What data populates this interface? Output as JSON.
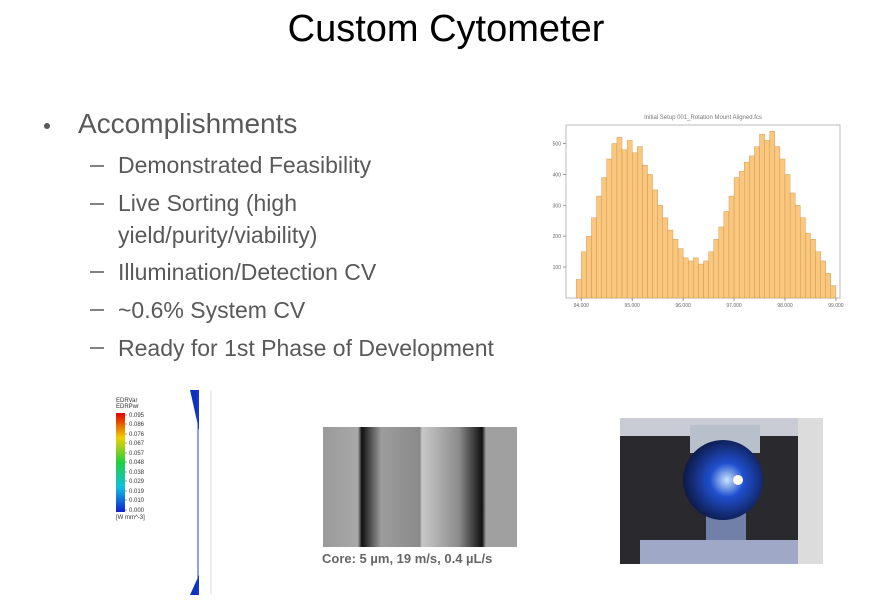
{
  "slide": {
    "title": "Custom Cytometer",
    "bullets": [
      {
        "text": "Accomplishments",
        "items": [
          "Demonstrated Feasibility",
          "Live Sorting (high yield/purity/viability)",
          "Illumination/Detection CV",
          "~0.6% System CV",
          "Ready for 1st Phase of Development"
        ]
      }
    ],
    "colorbar": {
      "labels": [
        "EDRVar",
        "EDRPwr"
      ],
      "ticks": [
        0.095,
        0.086,
        0.076,
        0.067,
        0.057,
        0.048,
        0.038,
        0.029,
        0.019,
        {
          "value": 0.01,
          "label": "0.010"
        },
        {
          "value": 0,
          "label": "0.000"
        }
      ],
      "unit": "[W mm^-3]"
    },
    "caption": "Core: 5 µm, 19 m/s, 0.4 µL/s"
  },
  "chart_data": {
    "type": "histogram",
    "title": "Initial Setup 001_Rotation Mount Aligned.fcs",
    "color": "#f9c77e",
    "bins": [
      93.9,
      94.0,
      94.1,
      94.2,
      94.3,
      94.4,
      94.5,
      94.6,
      94.7,
      94.8,
      94.9,
      95.0,
      95.1,
      95.2,
      95.3,
      95.4,
      95.5,
      95.6,
      95.7,
      95.8,
      95.9,
      96.0,
      96.1,
      96.2,
      96.3,
      96.4,
      96.5,
      96.6,
      96.7,
      96.8,
      96.9,
      97.0,
      97.1,
      97.2,
      97.3,
      97.4,
      97.5,
      97.6,
      97.7,
      97.8,
      97.9,
      98.0,
      98.1,
      98.2,
      98.3,
      98.4,
      98.5,
      98.6,
      98.7,
      98.8,
      98.9,
      99.0
    ],
    "values": [
      60,
      150,
      200,
      260,
      330,
      390,
      450,
      500,
      520,
      480,
      510,
      470,
      490,
      430,
      400,
      350,
      300,
      260,
      220,
      190,
      160,
      130,
      120,
      130,
      110,
      120,
      150,
      190,
      230,
      280,
      330,
      390,
      410,
      440,
      460,
      490,
      530,
      510,
      540,
      490,
      450,
      400,
      340,
      300,
      260,
      210,
      190,
      150,
      120,
      80,
      40
    ],
    "xlim": [
      93.7,
      99.08
    ],
    "ylim": [
      0,
      560
    ],
    "xticks": [
      {
        "value": 94,
        "label": "94.000"
      },
      {
        "value": 95,
        "label": "95.000"
      },
      {
        "value": 96,
        "label": "96.000"
      },
      {
        "value": 97,
        "label": "97.000"
      },
      {
        "value": 98,
        "label": "98.000"
      },
      {
        "value": 99,
        "label": "99.000"
      }
    ],
    "yticks": [
      100,
      200,
      300,
      400,
      500
    ]
  }
}
